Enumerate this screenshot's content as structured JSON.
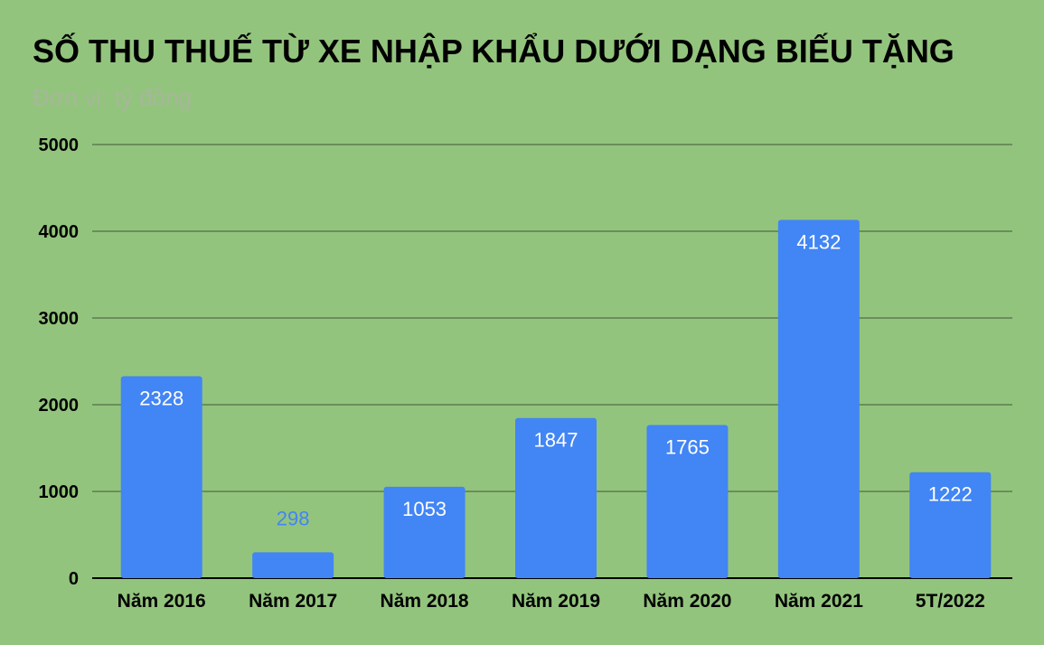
{
  "chart_data": {
    "type": "bar",
    "title": "SỐ THU THUẾ TỪ XE NHẬP KHẨU DƯỚI DẠNG BIẾU TẶNG",
    "subtitle": "Đơn vị: tỷ đồng",
    "categories": [
      "Năm 2016",
      "Năm 2017",
      "Năm 2018",
      "Năm 2019",
      "Năm 2020",
      "Năm 2021",
      "5T/2022"
    ],
    "values": [
      2328,
      298,
      1053,
      1847,
      1765,
      4132,
      1222
    ],
    "data_labels": [
      "2328",
      "298",
      "1053",
      "1847",
      "1765",
      "4132",
      "1222"
    ],
    "yticks": [
      "0",
      "1000",
      "2000",
      "3000",
      "4000",
      "5000"
    ],
    "ylim": [
      0,
      5000
    ],
    "xlabel": "",
    "ylabel": "",
    "grid": true,
    "legend": "none",
    "colors": {
      "background": "#93c47d",
      "bar": "#4285f4",
      "gridline": "#5c7d50",
      "axis": "#000000",
      "label_inside": "#ffffff",
      "label_outside": "#4285f4"
    }
  }
}
